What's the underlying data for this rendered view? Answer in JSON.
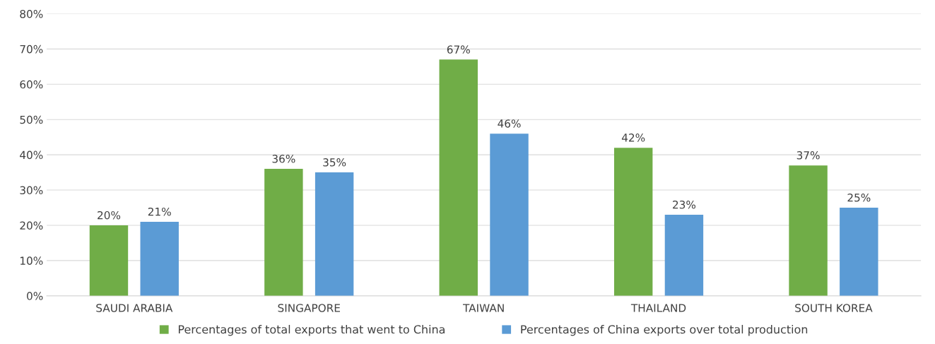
{
  "chart_data": {
    "type": "bar",
    "categories": [
      "SAUDI ARABIA",
      "SINGAPORE",
      "TAIWAN",
      "THAILAND",
      "SOUTH KOREA"
    ],
    "series": [
      {
        "name": "Percentages of total exports that went to China",
        "color": "#70ad47",
        "values": [
          20,
          36,
          67,
          42,
          37
        ],
        "value_labels": [
          "20%",
          "36%",
          "67%",
          "42%",
          "37%"
        ]
      },
      {
        "name": "Percentages of China exports over total production",
        "color": "#5b9bd5",
        "values": [
          21,
          35,
          46,
          23,
          25
        ],
        "value_labels": [
          "21%",
          "35%",
          "46%",
          "23%",
          "25%"
        ]
      }
    ],
    "ylim": [
      0,
      80
    ],
    "yticks": [
      {
        "value": 0,
        "label": "0%"
      },
      {
        "value": 10,
        "label": "10%"
      },
      {
        "value": 20,
        "label": "20%"
      },
      {
        "value": 30,
        "label": "30%"
      },
      {
        "value": 40,
        "label": "40%"
      },
      {
        "value": 50,
        "label": "50%"
      },
      {
        "value": 60,
        "label": "60%"
      },
      {
        "value": 70,
        "label": "70%"
      },
      {
        "value": 80,
        "label": "80%"
      }
    ],
    "grid": "y",
    "legend": "bottom"
  }
}
